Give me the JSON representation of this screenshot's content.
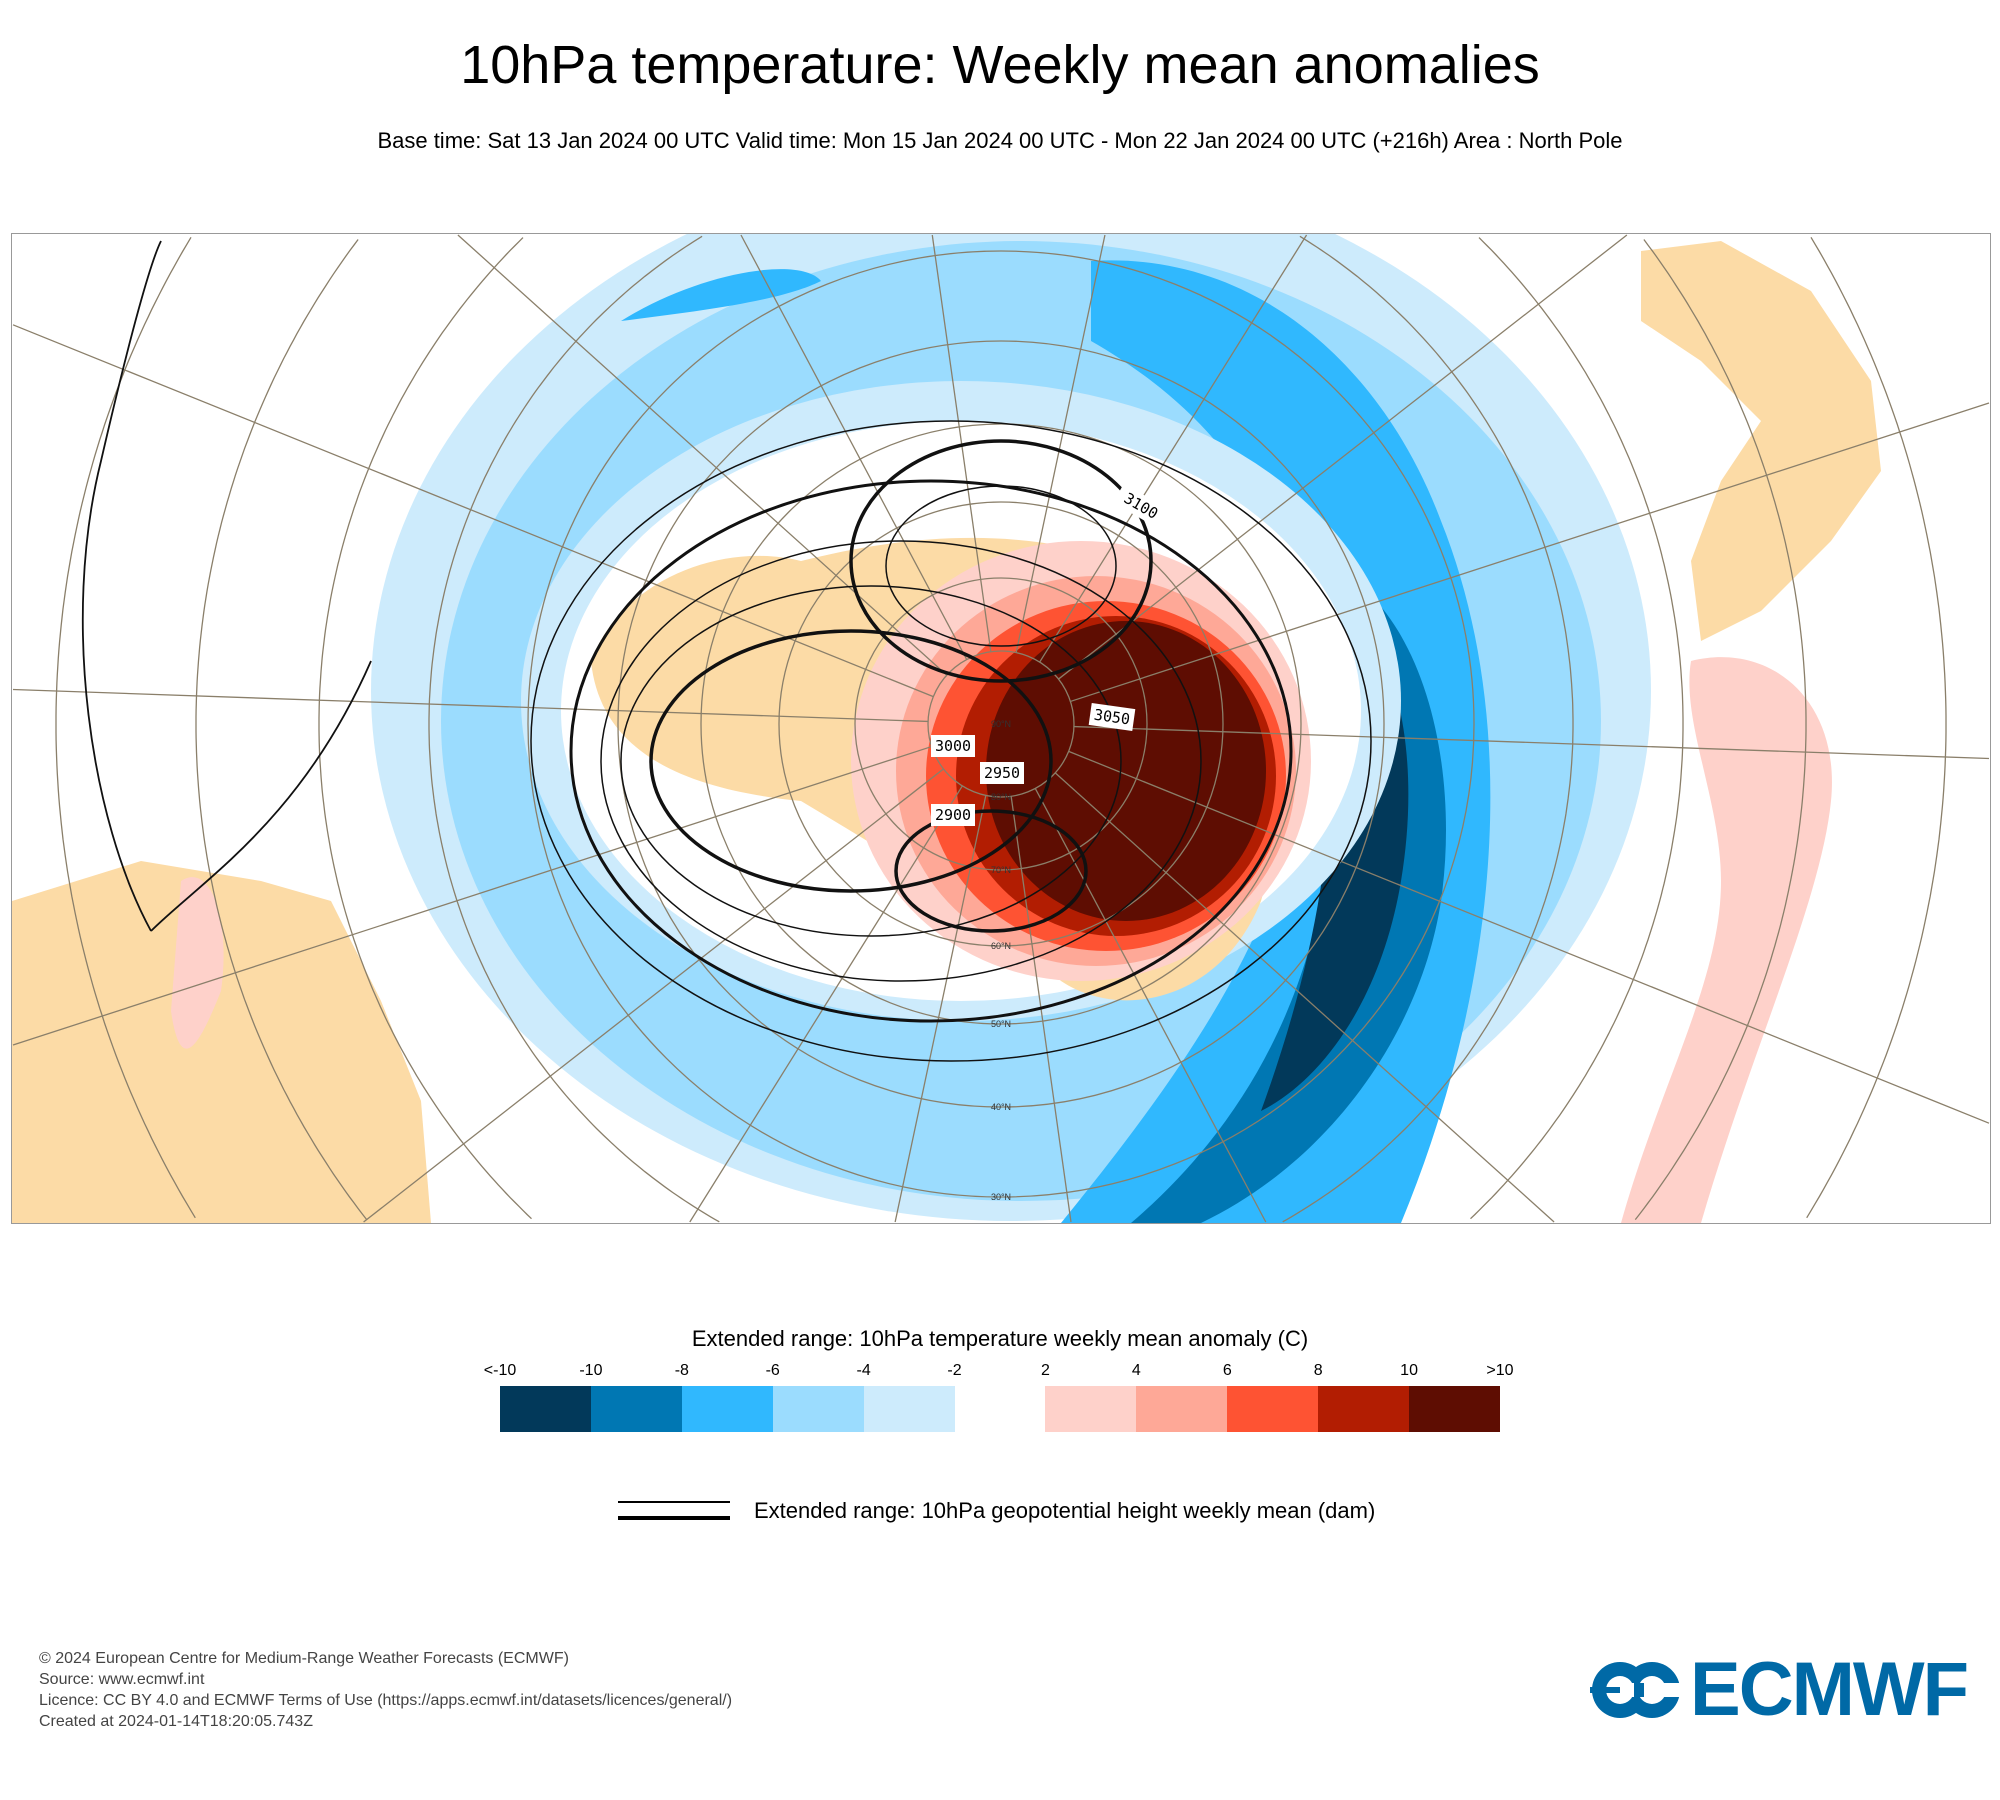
{
  "header": {
    "title": "10hPa temperature: Weekly mean anomalies",
    "subtitle": "Base time: Sat 13 Jan 2024 00 UTC Valid time: Mon 15 Jan 2024 00 UTC - Mon 22 Jan 2024 00 UTC (+216h) Area : North Pole"
  },
  "map": {
    "contour_labels": [
      "3100",
      "3050",
      "3000",
      "2950",
      "2900"
    ],
    "lat_labels": [
      "90°N",
      "80°N",
      "70°N",
      "60°N",
      "50°N",
      "40°N",
      "30°N"
    ],
    "colors": {
      "land": "#fcdba6",
      "graticule": "#8a7f6a",
      "coast": "#111111"
    }
  },
  "legend": {
    "title": "Extended range: 10hPa temperature weekly mean anomaly (C)",
    "ticks": [
      "<-10",
      "-10",
      "-8",
      "-6",
      "-4",
      "-2",
      "2",
      "4",
      "6",
      "8",
      "10",
      ">10"
    ],
    "colors": [
      "#02395a",
      "#0077b3",
      "#30b8fe",
      "#9bdcfe",
      "#cdebfc",
      "#ffffff",
      "#fed1ca",
      "#fea897",
      "#fe5333",
      "#b21d02",
      "#5e0d02"
    ],
    "geopotential_label": "Extended range: 10hPa geopotential height weekly mean (dam)"
  },
  "footer": {
    "lines": [
      "© 2024 European Centre for Medium-Range Weather Forecasts (ECMWF)",
      "Source: www.ecmwf.int",
      "Licence: CC BY 4.0 and ECMWF Terms of Use (https://apps.ecmwf.int/datasets/licences/general/)",
      "Created at 2024-01-14T18:20:05.743Z"
    ],
    "logo_text": "ECMWF"
  }
}
